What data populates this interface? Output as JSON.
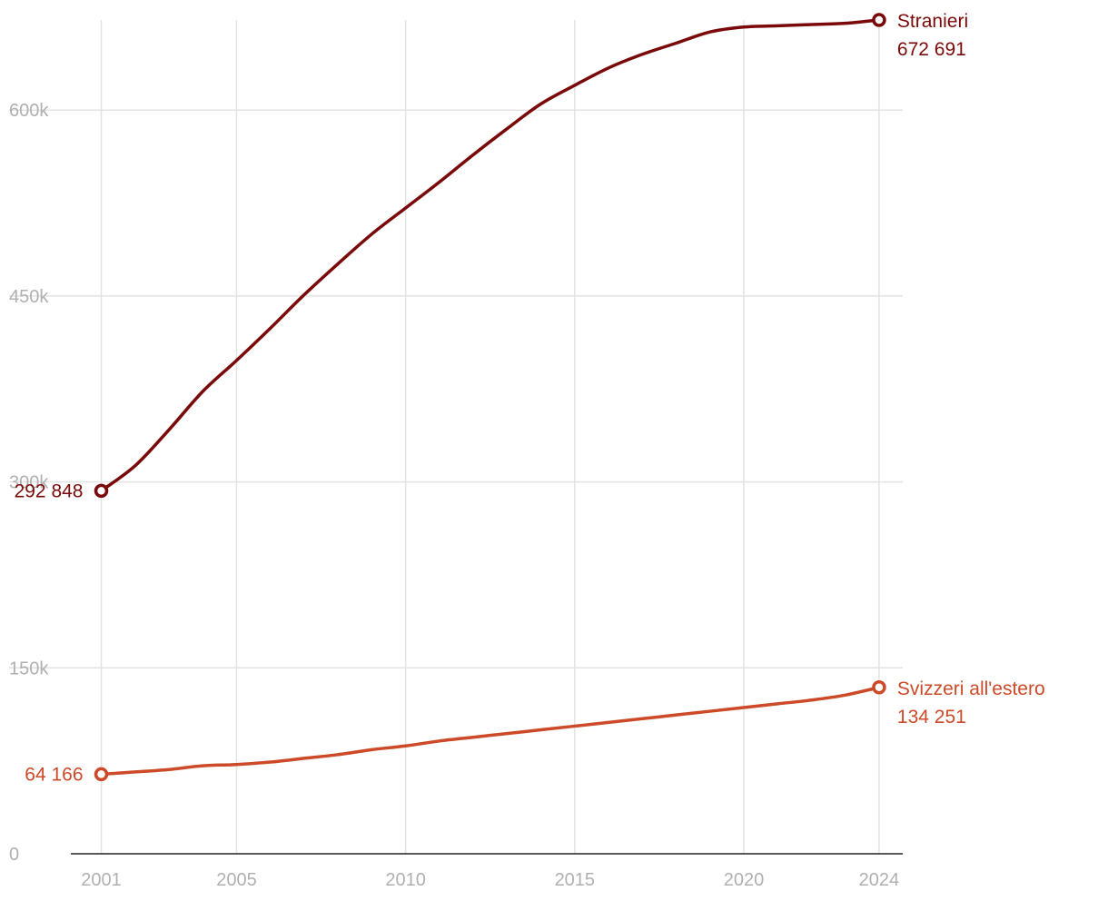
{
  "chart_data": {
    "type": "line",
    "title": "",
    "xlabel": "",
    "ylabel": "",
    "xlim": [
      2000.1,
      2024.7
    ],
    "ylim": [
      0,
      672691
    ],
    "x_ticks": [
      2001,
      2005,
      2010,
      2015,
      2020,
      2024
    ],
    "y_ticks": [
      0,
      150000,
      300000,
      450000,
      600000
    ],
    "y_tick_labels": [
      "0",
      "150k",
      "300k",
      "450k",
      "600k"
    ],
    "grid": true,
    "x": [
      2001,
      2002,
      2003,
      2004,
      2005,
      2006,
      2007,
      2008,
      2009,
      2010,
      2011,
      2012,
      2013,
      2014,
      2015,
      2016,
      2017,
      2018,
      2019,
      2020,
      2021,
      2022,
      2023,
      2024
    ],
    "series": [
      {
        "name": "Stranieri",
        "color": "#7a0a0a",
        "values": [
          292848,
          313000,
          342000,
          373000,
          398000,
          424000,
          451000,
          476000,
          500000,
          521000,
          542000,
          564000,
          585000,
          605000,
          620000,
          634000,
          645000,
          654000,
          663000,
          667000,
          668000,
          669000,
          670000,
          672691
        ],
        "start_label": "292 848",
        "end_label": "672 691"
      },
      {
        "name": "Svizzeri all'estero",
        "color": "#cc4a28",
        "values": [
          64166,
          66000,
          68000,
          71000,
          72000,
          74000,
          77000,
          80000,
          84000,
          87000,
          91000,
          94000,
          97000,
          100000,
          103000,
          106000,
          109000,
          112000,
          115000,
          118000,
          121000,
          124000,
          128000,
          134251
        ],
        "start_label": "64 166",
        "end_label": "134 251"
      }
    ]
  }
}
